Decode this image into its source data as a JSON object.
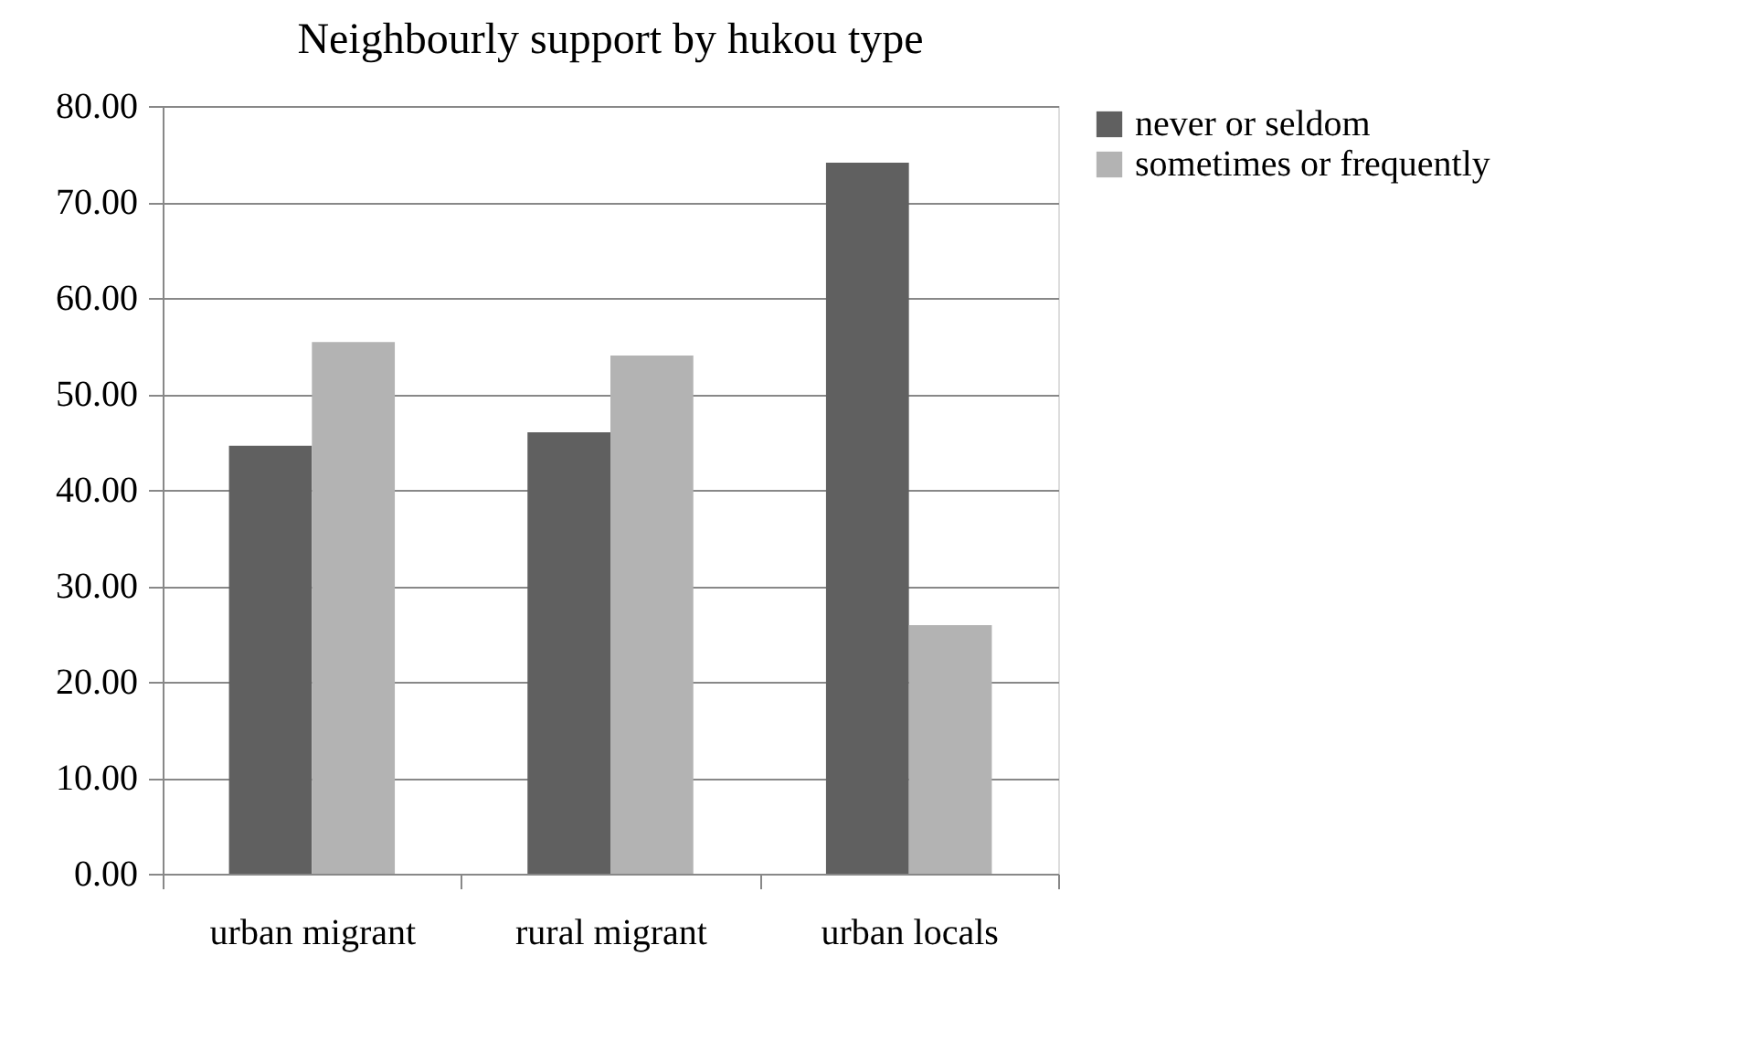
{
  "chart_data": {
    "type": "bar",
    "title": "Neighbourly support by hukou type",
    "categories": [
      "urban migrant",
      "rural migrant",
      "urban locals"
    ],
    "series": [
      {
        "name": "never or seldom",
        "color": "#606060",
        "values": [
          44.6,
          46.0,
          74.1
        ]
      },
      {
        "name": "sometimes or frequently",
        "color": "#b3b3b3",
        "values": [
          55.4,
          54.0,
          25.9
        ]
      }
    ],
    "ylim": [
      0,
      80
    ],
    "yticks": [
      {
        "value": 0,
        "label": "0.00"
      },
      {
        "value": 10,
        "label": "10.00"
      },
      {
        "value": 20,
        "label": "20.00"
      },
      {
        "value": 30,
        "label": "30.00"
      },
      {
        "value": 40,
        "label": "40.00"
      },
      {
        "value": 50,
        "label": "50.00"
      },
      {
        "value": 60,
        "label": "60.00"
      },
      {
        "value": 70,
        "label": "70.00"
      },
      {
        "value": 80,
        "label": "80.00"
      }
    ],
    "grid": "y",
    "legend": "right"
  }
}
